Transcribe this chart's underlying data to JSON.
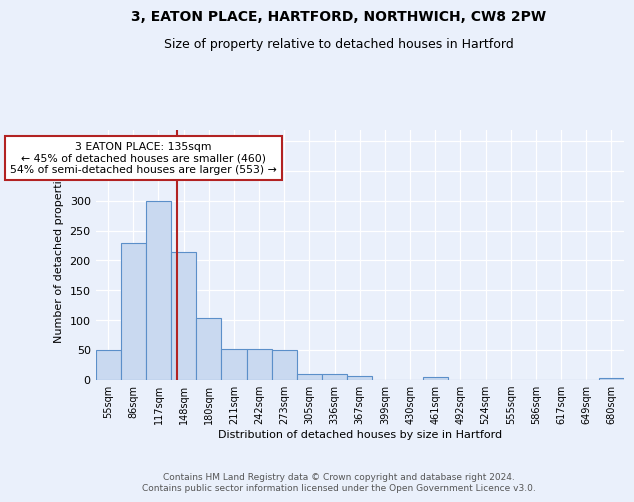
{
  "title1": "3, EATON PLACE, HARTFORD, NORTHWICH, CW8 2PW",
  "title2": "Size of property relative to detached houses in Hartford",
  "xlabel": "Distribution of detached houses by size in Hartford",
  "ylabel": "Number of detached properties",
  "bin_labels": [
    "55sqm",
    "86sqm",
    "117sqm",
    "148sqm",
    "180sqm",
    "211sqm",
    "242sqm",
    "273sqm",
    "305sqm",
    "336sqm",
    "367sqm",
    "399sqm",
    "430sqm",
    "461sqm",
    "492sqm",
    "524sqm",
    "555sqm",
    "586sqm",
    "617sqm",
    "649sqm",
    "680sqm"
  ],
  "bar_heights": [
    50,
    230,
    300,
    215,
    103,
    52,
    52,
    49,
    10,
    10,
    6,
    0,
    0,
    4,
    0,
    0,
    0,
    0,
    0,
    0,
    3
  ],
  "bar_color": "#c9d9f0",
  "bar_edge_color": "#5b8fc9",
  "vline_x_index": 2.72,
  "vline_color": "#b22222",
  "annotation_text": "3 EATON PLACE: 135sqm\n← 45% of detached houses are smaller (460)\n54% of semi-detached houses are larger (553) →",
  "annotation_box_color": "white",
  "annotation_box_edge": "#b22222",
  "ylim": [
    0,
    420
  ],
  "yticks": [
    0,
    50,
    100,
    150,
    200,
    250,
    300,
    350,
    400
  ],
  "footer": "Contains HM Land Registry data © Crown copyright and database right 2024.\nContains public sector information licensed under the Open Government Licence v3.0.",
  "bg_color": "#eaf0fb",
  "plot_bg_color": "#eaf0fb",
  "title_fontsize": 10,
  "subtitle_fontsize": 9,
  "annot_fontsize": 7.8
}
